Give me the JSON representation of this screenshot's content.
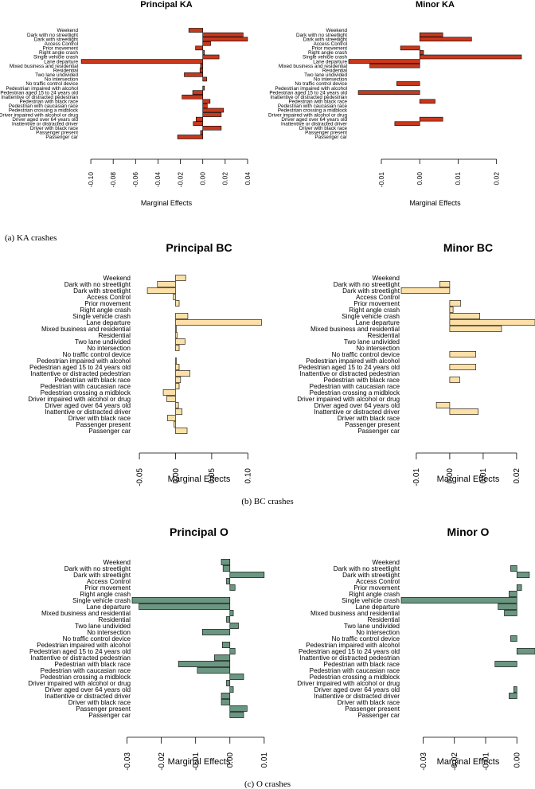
{
  "variables": [
    "Weekend",
    "Dark with no streetlight",
    "Dark with streetlight",
    "Access Control",
    "Prior movement",
    "Right angle crash",
    "Single vehicle crash",
    "Lane departure",
    "Mixed business and residential",
    "Residential",
    "Two lane undivided",
    "No intersection",
    "No traffic control device",
    "Pedestrian impaired with alcohol",
    "Pedestrian aged 15 to 24 years old",
    "Inattentive or distracted pedestrian",
    "Pedestrian with black race",
    "Pedestrian with caucasian race",
    "Pedestrian crossing a midblock",
    "Driver impaired with alcohol or drug",
    "Driver aged over 64 years old",
    "Inattentive or distracted driver",
    "Driver with black race",
    "Passenger present",
    "Passenger car"
  ],
  "captions": [
    "(a) KA crashes",
    "(b) BC crashes",
    "(c) O crashes"
  ],
  "chart_data": [
    {
      "type": "bar",
      "orientation": "horizontal",
      "title": "Principal KA",
      "xlabel": "Marginal Effects",
      "xlim": [
        -0.11,
        0.045
      ],
      "ticks": [
        -0.1,
        -0.08,
        -0.06,
        -0.04,
        -0.02,
        0.0,
        0.02,
        0.04
      ],
      "tick_labels": [
        "-0.10",
        "-0.08",
        "-0.06",
        "-0.04",
        "-0.02",
        "0.00",
        "0.02",
        "0.04"
      ],
      "color": "#c8381d",
      "values": [
        -0.0125,
        0.036,
        0.04,
        0.007,
        -0.0065,
        0.0015,
        0.0145,
        -0.1085,
        -0.002,
        -0.0025,
        -0.0165,
        0.0035,
        0,
        0.0015,
        -0.009,
        -0.0185,
        0.0065,
        0.004,
        0.0185,
        0.0165,
        -0.006,
        -0.0085,
        0.0165,
        -0.002,
        -0.0225
      ]
    },
    {
      "type": "bar",
      "orientation": "horizontal",
      "title": "Minor KA",
      "xlabel": "Marginal Effects",
      "xlim": [
        -0.0185,
        0.0265
      ],
      "ticks": [
        -0.01,
        0.0,
        0.01,
        0.02
      ],
      "tick_labels": [
        "-0.01",
        "0.00",
        "0.01",
        "0.02"
      ],
      "color": "#c8381d",
      "values": [
        0,
        0.006,
        0.0135,
        0,
        -0.005,
        0.001,
        0.0265,
        -0.0185,
        -0.013,
        0,
        0,
        0,
        -0.006,
        0,
        -0.016,
        0,
        0.004,
        0,
        0,
        0,
        0.006,
        -0.0065,
        0,
        0,
        0
      ]
    },
    {
      "type": "bar",
      "orientation": "horizontal",
      "title": "Principal BC",
      "xlabel": "Marginal Effects",
      "xlim": [
        -0.06,
        0.125
      ],
      "ticks": [
        -0.05,
        0.0,
        0.05,
        0.1
      ],
      "tick_labels": [
        "-0.05",
        "0.00",
        "0.05",
        "0.10"
      ],
      "color": "#fce0a8",
      "values": [
        0.014,
        -0.025,
        -0.039,
        -0.003,
        0.005,
        0,
        0.017,
        0.119,
        0.001,
        0.002,
        0.013,
        0.005,
        0,
        0.001,
        0.005,
        0.02,
        0.007,
        0.005,
        -0.017,
        -0.012,
        0.004,
        0.009,
        -0.011,
        -0.002,
        0.016
      ]
    },
    {
      "type": "bar",
      "orientation": "horizontal",
      "title": "Minor BC",
      "xlabel": "Marginal Effects",
      "xlim": [
        -0.0145,
        0.0255
      ],
      "ticks": [
        -0.01,
        0.0,
        0.01,
        0.02
      ],
      "tick_labels": [
        "-0.01",
        "0.00",
        "0.01",
        "0.02"
      ],
      "color": "#fce0a8",
      "values": [
        0,
        -0.003,
        -0.0145,
        0,
        0.0033,
        0.001,
        0.009,
        0.0255,
        0.0155,
        0,
        0,
        0,
        0.0078,
        0,
        0.0078,
        0,
        0.003,
        0,
        0,
        0,
        -0.004,
        0.0085,
        0,
        0,
        0
      ]
    },
    {
      "type": "bar",
      "orientation": "horizontal",
      "title": "Principal O",
      "xlabel": "Marginal Effects",
      "xlim": [
        -0.0285,
        0.0105
      ],
      "ticks": [
        -0.03,
        -0.02,
        -0.01,
        0.0,
        0.01
      ],
      "tick_labels": [
        "-0.03",
        "-0.02",
        "-0.01",
        "0.00",
        "0.01"
      ],
      "color": "#6b9681",
      "values": [
        -0.0025,
        -0.002,
        0.01,
        -0.001,
        0.0015,
        0,
        -0.0285,
        -0.0265,
        0.001,
        -0.001,
        0.0025,
        -0.008,
        0,
        -0.0022,
        0.0015,
        -0.0045,
        -0.015,
        -0.0095,
        0.004,
        -0.001,
        0.001,
        -0.0025,
        -0.0025,
        0.005,
        0.004
      ]
    },
    {
      "type": "bar",
      "orientation": "horizontal",
      "title": "Minor O",
      "xlabel": "Marginal Effects",
      "xlim": [
        -0.037,
        0.0058
      ],
      "ticks": [
        -0.03,
        -0.02,
        -0.01,
        0.0
      ],
      "tick_labels": [
        "-0.03",
        "-0.02",
        "-0.01",
        "0.00"
      ],
      "color": "#6b9681",
      "values": [
        0,
        -0.002,
        0.004,
        0,
        0.0015,
        -0.0025,
        -0.037,
        -0.006,
        -0.004,
        0,
        0,
        0,
        -0.002,
        0,
        0.0058,
        0,
        -0.007,
        0,
        0,
        0,
        -0.001,
        -0.0025,
        0,
        0,
        0
      ]
    }
  ]
}
